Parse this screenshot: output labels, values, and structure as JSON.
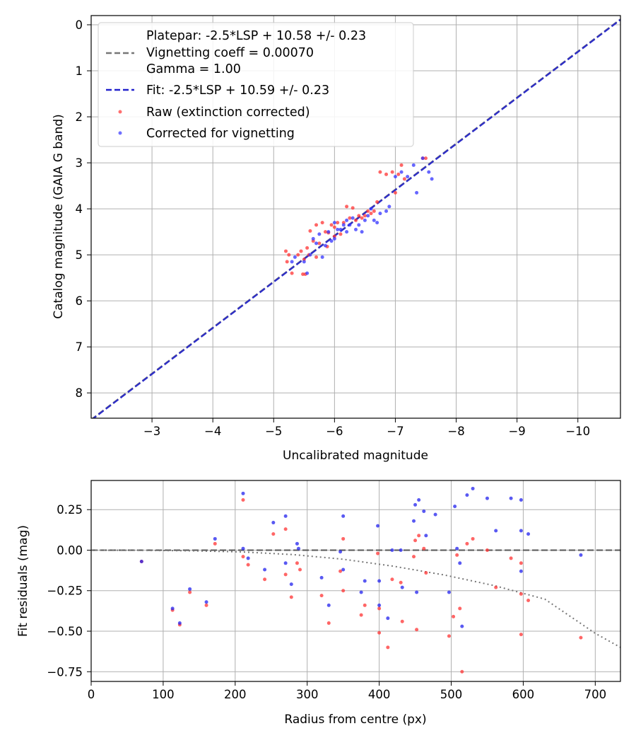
{
  "chart_data": [
    {
      "type": "scatter",
      "title": "",
      "xlabel": "Uncalibrated magnitude",
      "ylabel": "Catalog magnitude (GAIA G band)",
      "xlim": [
        -2.0,
        -10.7
      ],
      "ylim": [
        8.55,
        -0.2
      ],
      "x_inverted": true,
      "y_inverted": true,
      "grid": true,
      "legend_position": "top-left",
      "xticks": [
        -3,
        -4,
        -5,
        -6,
        -7,
        -8,
        -9,
        -10
      ],
      "xtick_labels": [
        "−3",
        "−4",
        "−5",
        "−6",
        "−7",
        "−8",
        "−9",
        "−10"
      ],
      "yticks": [
        0,
        1,
        2,
        3,
        4,
        5,
        6,
        7,
        8
      ],
      "ytick_labels": [
        "0",
        "1",
        "2",
        "3",
        "4",
        "5",
        "6",
        "7",
        "8"
      ],
      "legend": {
        "platepar_lines": [
          "Platepar: -2.5*LSP + 10.58 +/- 0.23",
          "Vignetting coeff = 0.00070",
          "Gamma = 1.00"
        ],
        "fit": "Fit: -2.5*LSP + 10.59 +/- 0.23",
        "raw": "Raw (extinction corrected)",
        "corrected": "Corrected for vignetting"
      },
      "series": [
        {
          "name": "Platepar",
          "kind": "line",
          "color": "#777777",
          "dashed": true,
          "slope": 1.0,
          "intercept": 10.58
        },
        {
          "name": "Fit",
          "kind": "line",
          "color": "#2222cc",
          "dashed": true,
          "slope": 1.0,
          "intercept": 10.59
        },
        {
          "name": "Raw (extinction corrected)",
          "kind": "scatter",
          "color": "#ff3333",
          "points": [
            [
              -5.2,
              4.92
            ],
            [
              -5.25,
              5.0
            ],
            [
              -5.22,
              5.15
            ],
            [
              -5.3,
              5.4
            ],
            [
              -5.4,
              5.0
            ],
            [
              -5.45,
              4.92
            ],
            [
              -5.5,
              5.1
            ],
            [
              -5.52,
              5.42
            ],
            [
              -5.55,
              4.85
            ],
            [
              -5.58,
              5.0
            ],
            [
              -5.6,
              4.48
            ],
            [
              -5.65,
              4.7
            ],
            [
              -5.7,
              4.35
            ],
            [
              -5.75,
              4.75
            ],
            [
              -5.8,
              4.3
            ],
            [
              -5.85,
              4.5
            ],
            [
              -5.88,
              4.82
            ],
            [
              -5.9,
              4.52
            ],
            [
              -5.95,
              4.35
            ],
            [
              -6.0,
              4.6
            ],
            [
              -6.05,
              4.3
            ],
            [
              -6.1,
              4.55
            ],
            [
              -6.15,
              4.3
            ],
            [
              -6.2,
              3.95
            ],
            [
              -6.25,
              4.2
            ],
            [
              -6.3,
              3.98
            ],
            [
              -6.35,
              4.25
            ],
            [
              -6.4,
              4.15
            ],
            [
              -6.45,
              4.2
            ],
            [
              -6.5,
              4.15
            ],
            [
              -6.55,
              4.05
            ],
            [
              -6.6,
              4.1
            ],
            [
              -6.65,
              4.05
            ],
            [
              -6.7,
              3.85
            ],
            [
              -6.75,
              3.2
            ],
            [
              -6.85,
              3.25
            ],
            [
              -6.95,
              3.2
            ],
            [
              -7.0,
              3.65
            ],
            [
              -7.05,
              3.25
            ],
            [
              -7.1,
              3.05
            ],
            [
              -7.15,
              3.35
            ],
            [
              -7.45,
              2.9
            ],
            [
              -7.5,
              2.9
            ],
            [
              -5.48,
              5.42
            ],
            [
              -5.7,
              5.05
            ],
            [
              -6.0,
              4.4
            ]
          ]
        },
        {
          "name": "Corrected for vignetting",
          "kind": "scatter",
          "color": "#3333ff",
          "points": [
            [
              -5.3,
              5.15
            ],
            [
              -5.35,
              5.05
            ],
            [
              -5.5,
              5.15
            ],
            [
              -5.55,
              5.4
            ],
            [
              -5.6,
              5.0
            ],
            [
              -5.65,
              4.65
            ],
            [
              -5.7,
              4.75
            ],
            [
              -5.75,
              4.55
            ],
            [
              -5.8,
              5.05
            ],
            [
              -5.85,
              4.8
            ],
            [
              -5.9,
              4.5
            ],
            [
              -5.95,
              4.7
            ],
            [
              -6.0,
              4.65
            ],
            [
              -6.05,
              4.45
            ],
            [
              -6.1,
              4.45
            ],
            [
              -6.15,
              4.35
            ],
            [
              -6.2,
              4.25
            ],
            [
              -6.25,
              4.35
            ],
            [
              -6.3,
              4.2
            ],
            [
              -6.35,
              4.45
            ],
            [
              -6.4,
              4.35
            ],
            [
              -6.45,
              4.5
            ],
            [
              -6.5,
              4.25
            ],
            [
              -6.55,
              4.15
            ],
            [
              -6.6,
              4.0
            ],
            [
              -6.65,
              4.25
            ],
            [
              -6.7,
              4.3
            ],
            [
              -6.75,
              4.1
            ],
            [
              -6.85,
              4.05
            ],
            [
              -6.9,
              3.95
            ],
            [
              -7.0,
              3.3
            ],
            [
              -7.1,
              3.2
            ],
            [
              -7.2,
              3.3
            ],
            [
              -7.3,
              3.05
            ],
            [
              -7.35,
              3.65
            ],
            [
              -7.45,
              2.9
            ],
            [
              -7.55,
              3.2
            ],
            [
              -7.6,
              3.35
            ],
            [
              -6.2,
              4.5
            ],
            [
              -6.0,
              4.3
            ]
          ]
        }
      ]
    },
    {
      "type": "scatter",
      "title": "",
      "xlabel": "Radius from centre (px)",
      "ylabel": "Fit residuals (mag)",
      "xlim": [
        0,
        735
      ],
      "ylim": [
        -0.81,
        0.43
      ],
      "grid": true,
      "xticks": [
        0,
        100,
        200,
        300,
        400,
        500,
        600,
        700
      ],
      "xtick_labels": [
        "0",
        "100",
        "200",
        "300",
        "400",
        "500",
        "600",
        "700"
      ],
      "yticks": [
        0.25,
        0.0,
        -0.25,
        -0.5,
        -0.75
      ],
      "ytick_labels": [
        "0.25",
        "0.00",
        "−0.25",
        "−0.50",
        "−0.75"
      ],
      "series": [
        {
          "name": "zero line",
          "kind": "hline",
          "color": "#555555",
          "dashed": true,
          "y": 0.0
        },
        {
          "name": "vignetting model",
          "kind": "curve",
          "color": "#777777",
          "dotted": true,
          "x": [
            0,
            70,
            140,
            210,
            280,
            350,
            420,
            490,
            560,
            630,
            700,
            735
          ],
          "y": [
            0.0,
            -0.001,
            -0.004,
            -0.011,
            -0.027,
            -0.056,
            -0.099,
            -0.153,
            -0.219,
            -0.302,
            -0.513,
            -0.6
          ]
        },
        {
          "name": "Raw (extinction corrected)",
          "kind": "scatter",
          "color": "#ff3333",
          "points": [
            [
              70,
              -0.07
            ],
            [
              113,
              -0.37
            ],
            [
              123,
              -0.46
            ],
            [
              137,
              -0.26
            ],
            [
              160,
              -0.34
            ],
            [
              172,
              0.04
            ],
            [
              211,
              0.31
            ],
            [
              218,
              -0.09
            ],
            [
              211,
              -0.04
            ],
            [
              241,
              -0.18
            ],
            [
              253,
              0.1
            ],
            [
              270,
              0.13
            ],
            [
              270,
              -0.15
            ],
            [
              278,
              -0.29
            ],
            [
              286,
              -0.08
            ],
            [
              290,
              -0.12
            ],
            [
              320,
              -0.28
            ],
            [
              330,
              -0.45
            ],
            [
              346,
              -0.13
            ],
            [
              350,
              -0.25
            ],
            [
              350,
              0.07
            ],
            [
              375,
              -0.4
            ],
            [
              380,
              -0.34
            ],
            [
              398,
              -0.02
            ],
            [
              400,
              -0.36
            ],
            [
              400,
              -0.51
            ],
            [
              412,
              -0.6
            ],
            [
              418,
              -0.18
            ],
            [
              430,
              -0.2
            ],
            [
              432,
              -0.44
            ],
            [
              448,
              -0.04
            ],
            [
              450,
              0.06
            ],
            [
              452,
              -0.49
            ],
            [
              455,
              0.09
            ],
            [
              462,
              0.01
            ],
            [
              465,
              -0.14
            ],
            [
              497,
              -0.53
            ],
            [
              503,
              -0.41
            ],
            [
              508,
              -0.03
            ],
            [
              512,
              -0.36
            ],
            [
              515,
              -0.75
            ],
            [
              522,
              0.04
            ],
            [
              530,
              0.07
            ],
            [
              550,
              0.0
            ],
            [
              562,
              -0.23
            ],
            [
              583,
              -0.05
            ],
            [
              597,
              -0.08
            ],
            [
              597,
              -0.27
            ],
            [
              597,
              -0.52
            ],
            [
              607,
              -0.31
            ],
            [
              680,
              -0.54
            ]
          ]
        },
        {
          "name": "Corrected for vignetting",
          "kind": "scatter",
          "color": "#2222ee",
          "points": [
            [
              70,
              -0.07
            ],
            [
              113,
              -0.36
            ],
            [
              123,
              -0.45
            ],
            [
              137,
              -0.24
            ],
            [
              160,
              -0.32
            ],
            [
              172,
              0.07
            ],
            [
              211,
              0.35
            ],
            [
              211,
              0.01
            ],
            [
              218,
              -0.05
            ],
            [
              241,
              -0.12
            ],
            [
              253,
              0.17
            ],
            [
              270,
              0.21
            ],
            [
              270,
              -0.08
            ],
            [
              278,
              -0.21
            ],
            [
              286,
              0.04
            ],
            [
              288,
              0.01
            ],
            [
              320,
              -0.17
            ],
            [
              330,
              -0.34
            ],
            [
              346,
              -0.01
            ],
            [
              350,
              -0.12
            ],
            [
              350,
              0.21
            ],
            [
              375,
              -0.26
            ],
            [
              380,
              -0.19
            ],
            [
              398,
              0.15
            ],
            [
              400,
              -0.34
            ],
            [
              400,
              -0.19
            ],
            [
              412,
              -0.42
            ],
            [
              418,
              0.0
            ],
            [
              430,
              0.0
            ],
            [
              432,
              -0.23
            ],
            [
              448,
              0.18
            ],
            [
              450,
              0.28
            ],
            [
              452,
              -0.26
            ],
            [
              455,
              0.31
            ],
            [
              462,
              0.24
            ],
            [
              465,
              0.09
            ],
            [
              478,
              0.22
            ],
            [
              497,
              -0.26
            ],
            [
              505,
              0.27
            ],
            [
              508,
              0.01
            ],
            [
              512,
              -0.08
            ],
            [
              515,
              -0.47
            ],
            [
              522,
              0.34
            ],
            [
              530,
              0.38
            ],
            [
              550,
              0.32
            ],
            [
              562,
              0.12
            ],
            [
              583,
              0.32
            ],
            [
              597,
              0.31
            ],
            [
              597,
              0.12
            ],
            [
              597,
              -0.13
            ],
            [
              607,
              0.1
            ],
            [
              680,
              -0.03
            ]
          ]
        }
      ]
    }
  ]
}
